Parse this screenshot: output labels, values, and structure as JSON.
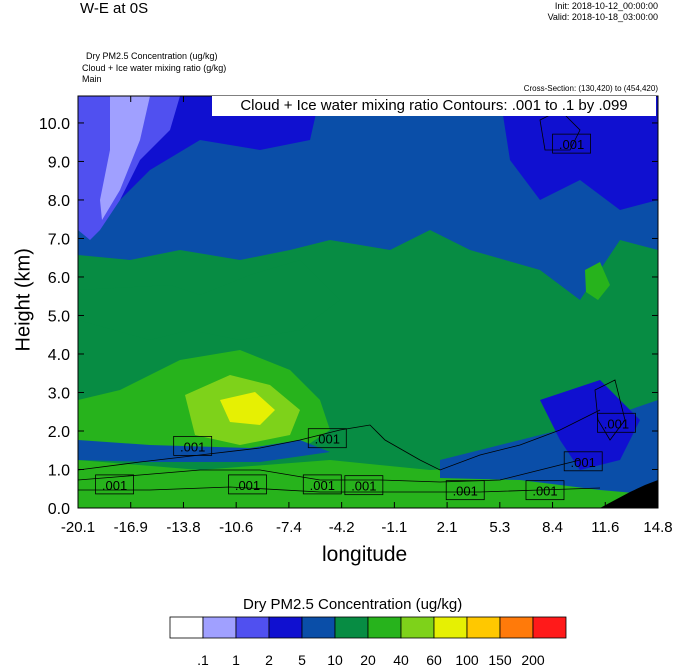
{
  "header": {
    "title": "W-E at 0S",
    "init": "Init: 2018-10-12_00:00:00",
    "valid": "Valid: 2018-10-18_03:00:00",
    "field_lines": [
      "Dry PM2.5 Concentration   (ug/kg)",
      "Cloud + Ice water mixing ratio   (g/kg)",
      "Main"
    ],
    "cross_section": "Cross-Section: (130,420) to (454,420)"
  },
  "chart_data": {
    "type": "heatmap",
    "contour_title": "Cloud + Ice water mixing ratio Contours: .001 to .1 by .099",
    "xlabel": "longitude",
    "ylabel": "Height (km)",
    "x_ticks": [
      "-20.1",
      "-16.9",
      "-13.8",
      "-10.6",
      "-7.4",
      "-4.2",
      "-1.1",
      "2.1",
      "5.3",
      "8.4",
      "11.6",
      "14.8"
    ],
    "y_ticks": [
      "0.0",
      "1.0",
      "2.0",
      "3.0",
      "4.0",
      "5.0",
      "6.0",
      "7.0",
      "8.0",
      "9.0",
      "10.0"
    ],
    "xlim": [
      -20.1,
      14.8
    ],
    "ylim": [
      0,
      10.7
    ],
    "colorbar": {
      "title": "Dry PM2.5 Concentration  (ug/kg)",
      "labels": [
        ".1",
        "1",
        "2",
        "5",
        "10",
        "20",
        "40",
        "60",
        "100",
        "150",
        "200"
      ],
      "colors": [
        "#ffffff",
        "#a0a0ff",
        "#5050f0",
        "#1010d0",
        "#0a4ea8",
        "#078c43",
        "#27b31c",
        "#7ed21a",
        "#e6f003",
        "#ffc800",
        "#ff7a0a",
        "#ff1a1a"
      ]
    },
    "contour_labels": [
      {
        "text": ".001",
        "x": 9.6,
        "y": 9.45
      },
      {
        "text": ".001",
        "x": -13.2,
        "y": 1.6
      },
      {
        "text": ".001",
        "x": -5.1,
        "y": 1.8
      },
      {
        "text": ".001",
        "x": -17.9,
        "y": 0.6
      },
      {
        "text": ".001",
        "x": -9.9,
        "y": 0.6
      },
      {
        "text": ".001",
        "x": -5.4,
        "y": 0.6
      },
      {
        "text": ".001",
        "x": -2.9,
        "y": 0.58
      },
      {
        "text": ".001",
        "x": 3.2,
        "y": 0.45
      },
      {
        "text": ".001",
        "x": 8.0,
        "y": 0.45
      },
      {
        "text": ".001",
        "x": 10.3,
        "y": 1.2
      },
      {
        "text": ".001",
        "x": 12.3,
        "y": 2.2
      }
    ]
  }
}
